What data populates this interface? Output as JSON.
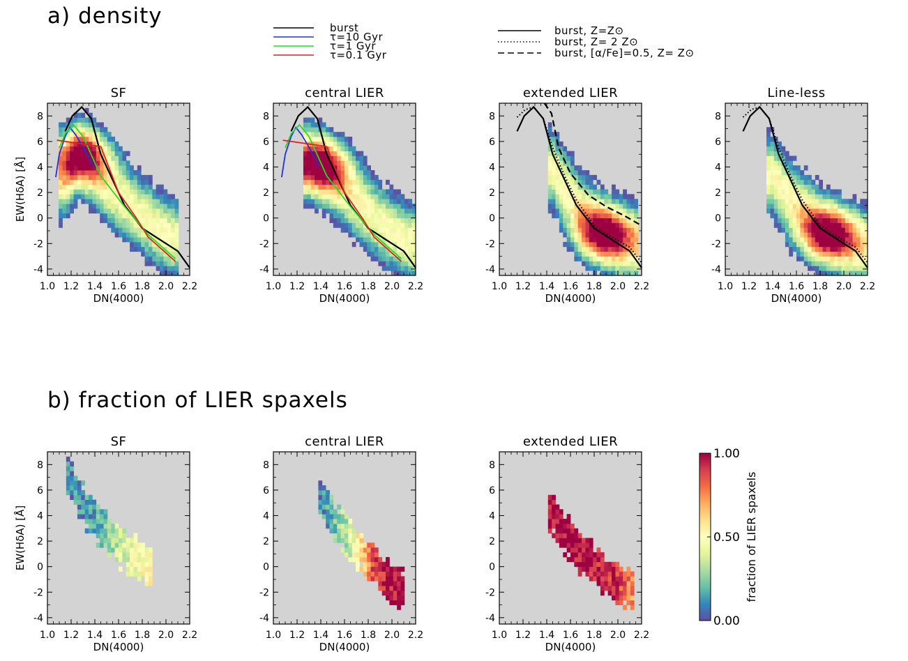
{
  "section_a": {
    "title": "a) density"
  },
  "section_b": {
    "title": "b) fraction of LIER spaxels"
  },
  "legend_models": [
    {
      "label": "burst",
      "color": "#000000"
    },
    {
      "label": "τ=10 Gyr",
      "color": "#1f2fe0"
    },
    {
      "label": "τ=1 Gyr",
      "color": "#22dd22"
    },
    {
      "label": "τ=0.1 Gyr",
      "color": "#e02020"
    }
  ],
  "legend_metallicity": [
    {
      "label": "burst, Z=Z⊙",
      "dash": "solid"
    },
    {
      "label": "burst, Z= 2 Z⊙",
      "dash": "dotted"
    },
    {
      "label": "burst, [α/Fe]=0.5, Z= Z⊙",
      "dash": "dashed"
    }
  ],
  "axes": {
    "xlabel": "DN(4000)",
    "ylabel": "EW(HδA) [Å]",
    "xlim": [
      1.0,
      2.2
    ],
    "ylim": [
      -4.5,
      9.0
    ],
    "xticks": [
      "1.0",
      "1.2",
      "1.4",
      "1.6",
      "1.8",
      "2.0",
      "2.2"
    ],
    "yticks": [
      "-4",
      "-2",
      "0",
      "2",
      "4",
      "6",
      "8"
    ],
    "background": "#d3d3d3"
  },
  "colorbar": {
    "label": "fraction of LIER spaxels",
    "ticks": [
      "0.00",
      "0.50",
      "1.00"
    ],
    "range": [
      0.0,
      1.0
    ],
    "colormap": "Spectral_r"
  },
  "chart_data": [
    {
      "type": "heatmap",
      "title": "SF",
      "row": "density",
      "density_ridge": [
        [
          1.15,
          3.0
        ],
        [
          1.25,
          4.6
        ],
        [
          1.35,
          4.2
        ],
        [
          1.5,
          2.6
        ],
        [
          1.7,
          0.9
        ],
        [
          1.9,
          -0.6
        ],
        [
          2.05,
          -1.6
        ]
      ],
      "density_peak": [
        1.28,
        5.0
      ],
      "overlays": [
        "burst_Zsun",
        "tau10",
        "tau1",
        "tau01"
      ]
    },
    {
      "type": "heatmap",
      "title": "central LIER",
      "row": "density",
      "density_ridge": [
        [
          1.3,
          4.6
        ],
        [
          1.45,
          3.6
        ],
        [
          1.6,
          2.2
        ],
        [
          1.75,
          0.8
        ],
        [
          1.9,
          -0.4
        ],
        [
          2.05,
          -1.4
        ],
        [
          2.15,
          -1.9
        ]
      ],
      "density_peak": [
        1.4,
        4.1
      ],
      "overlays": [
        "burst_Zsun",
        "tau10",
        "tau1",
        "tau01"
      ]
    },
    {
      "type": "heatmap",
      "title": "extended LIER",
      "row": "density",
      "density_ridge": [
        [
          1.45,
          3.8
        ],
        [
          1.55,
          2.5
        ],
        [
          1.7,
          0.4
        ],
        [
          1.85,
          -0.9
        ],
        [
          2.0,
          -1.8
        ],
        [
          2.1,
          -2.1
        ]
      ],
      "density_peak": [
        1.88,
        -1.2
      ],
      "overlays": [
        "burst_Zsun",
        "burst_2Zsun",
        "burst_alpha"
      ]
    },
    {
      "type": "heatmap",
      "title": "Line-less",
      "row": "density",
      "density_ridge": [
        [
          1.4,
          3.4
        ],
        [
          1.55,
          1.6
        ],
        [
          1.7,
          0.2
        ],
        [
          1.85,
          -1.0
        ],
        [
          2.0,
          -1.8
        ],
        [
          2.15,
          -2.3
        ]
      ],
      "density_peak": [
        1.86,
        -1.3
      ],
      "overlays": [
        "burst_Zsun",
        "burst_2Zsun"
      ]
    },
    {
      "type": "heatmap",
      "title": "SF",
      "row": "fraction",
      "region_ridge": [
        [
          1.2,
          6.8
        ],
        [
          1.3,
          4.8
        ],
        [
          1.45,
          3.0
        ],
        [
          1.6,
          1.6
        ],
        [
          1.75,
          0.6
        ],
        [
          1.85,
          -0.2
        ]
      ],
      "fraction_trend": [
        [
          1.2,
          0.1
        ],
        [
          1.4,
          0.15
        ],
        [
          1.6,
          0.35
        ],
        [
          1.8,
          0.5
        ]
      ]
    },
    {
      "type": "heatmap",
      "title": "central LIER",
      "row": "fraction",
      "region_ridge": [
        [
          1.4,
          5.5
        ],
        [
          1.5,
          3.8
        ],
        [
          1.65,
          2.2
        ],
        [
          1.8,
          0.5
        ],
        [
          1.95,
          -0.9
        ],
        [
          2.05,
          -1.8
        ]
      ],
      "fraction_trend": [
        [
          1.4,
          0.1
        ],
        [
          1.6,
          0.3
        ],
        [
          1.75,
          0.6
        ],
        [
          1.85,
          0.9
        ],
        [
          2.05,
          1.0
        ]
      ]
    },
    {
      "type": "heatmap",
      "title": "extended LIER",
      "row": "fraction",
      "region_ridge": [
        [
          1.45,
          4.2
        ],
        [
          1.55,
          2.6
        ],
        [
          1.7,
          0.9
        ],
        [
          1.85,
          -0.4
        ],
        [
          2.0,
          -1.4
        ],
        [
          2.1,
          -1.9
        ]
      ],
      "fraction_trend": [
        [
          1.5,
          1.0
        ],
        [
          1.8,
          0.95
        ],
        [
          2.0,
          0.9
        ],
        [
          2.1,
          0.75
        ]
      ]
    }
  ],
  "model_tracks": {
    "burst_Zsun": {
      "color": "#000000",
      "dash": "solid",
      "points": [
        [
          1.15,
          6.8
        ],
        [
          1.21,
          8.0
        ],
        [
          1.29,
          8.7
        ],
        [
          1.37,
          7.8
        ],
        [
          1.45,
          5.0
        ],
        [
          1.55,
          3.0
        ],
        [
          1.65,
          1.0
        ],
        [
          1.8,
          -0.8
        ],
        [
          1.95,
          -1.7
        ],
        [
          2.1,
          -2.6
        ],
        [
          2.2,
          -3.9
        ]
      ]
    },
    "burst_2Zsun": {
      "color": "#000000",
      "dash": "dotted",
      "points": [
        [
          1.15,
          7.9
        ],
        [
          1.22,
          8.5
        ],
        [
          1.29,
          8.7
        ],
        [
          1.37,
          7.8
        ],
        [
          1.45,
          5.5
        ],
        [
          1.55,
          3.3
        ],
        [
          1.65,
          1.4
        ],
        [
          1.8,
          -0.6
        ],
        [
          1.95,
          -1.5
        ],
        [
          2.1,
          -2.3
        ],
        [
          2.2,
          -3.5
        ]
      ]
    },
    "burst_alpha": {
      "color": "#000000",
      "dash": "dashed",
      "points": [
        [
          1.38,
          9.0
        ],
        [
          1.44,
          8.2
        ],
        [
          1.5,
          5.5
        ],
        [
          1.6,
          3.5
        ],
        [
          1.75,
          1.8
        ],
        [
          1.9,
          0.9
        ],
        [
          2.05,
          0.2
        ],
        [
          2.2,
          -0.6
        ]
      ]
    },
    "tau10": {
      "color": "#1f2fe0",
      "dash": "solid",
      "points": [
        [
          1.07,
          3.2
        ],
        [
          1.1,
          5.0
        ],
        [
          1.15,
          6.4
        ],
        [
          1.19,
          7.1
        ],
        [
          1.24,
          6.5
        ],
        [
          1.31,
          5.4
        ],
        [
          1.39,
          4.0
        ]
      ]
    },
    "tau1": {
      "color": "#22dd22",
      "dash": "solid",
      "points": [
        [
          1.1,
          5.5
        ],
        [
          1.15,
          6.6
        ],
        [
          1.22,
          7.3
        ],
        [
          1.3,
          6.4
        ],
        [
          1.45,
          3.3
        ],
        [
          1.65,
          0.9
        ],
        [
          1.85,
          -1.3
        ],
        [
          2.08,
          -3.2
        ]
      ]
    },
    "tau01": {
      "color": "#e02020",
      "dash": "solid",
      "points": [
        [
          1.08,
          6.1
        ],
        [
          1.45,
          5.6
        ],
        [
          1.6,
          2.0
        ],
        [
          1.75,
          0.0
        ],
        [
          1.85,
          -1.5
        ],
        [
          2.08,
          -3.4
        ]
      ]
    }
  }
}
